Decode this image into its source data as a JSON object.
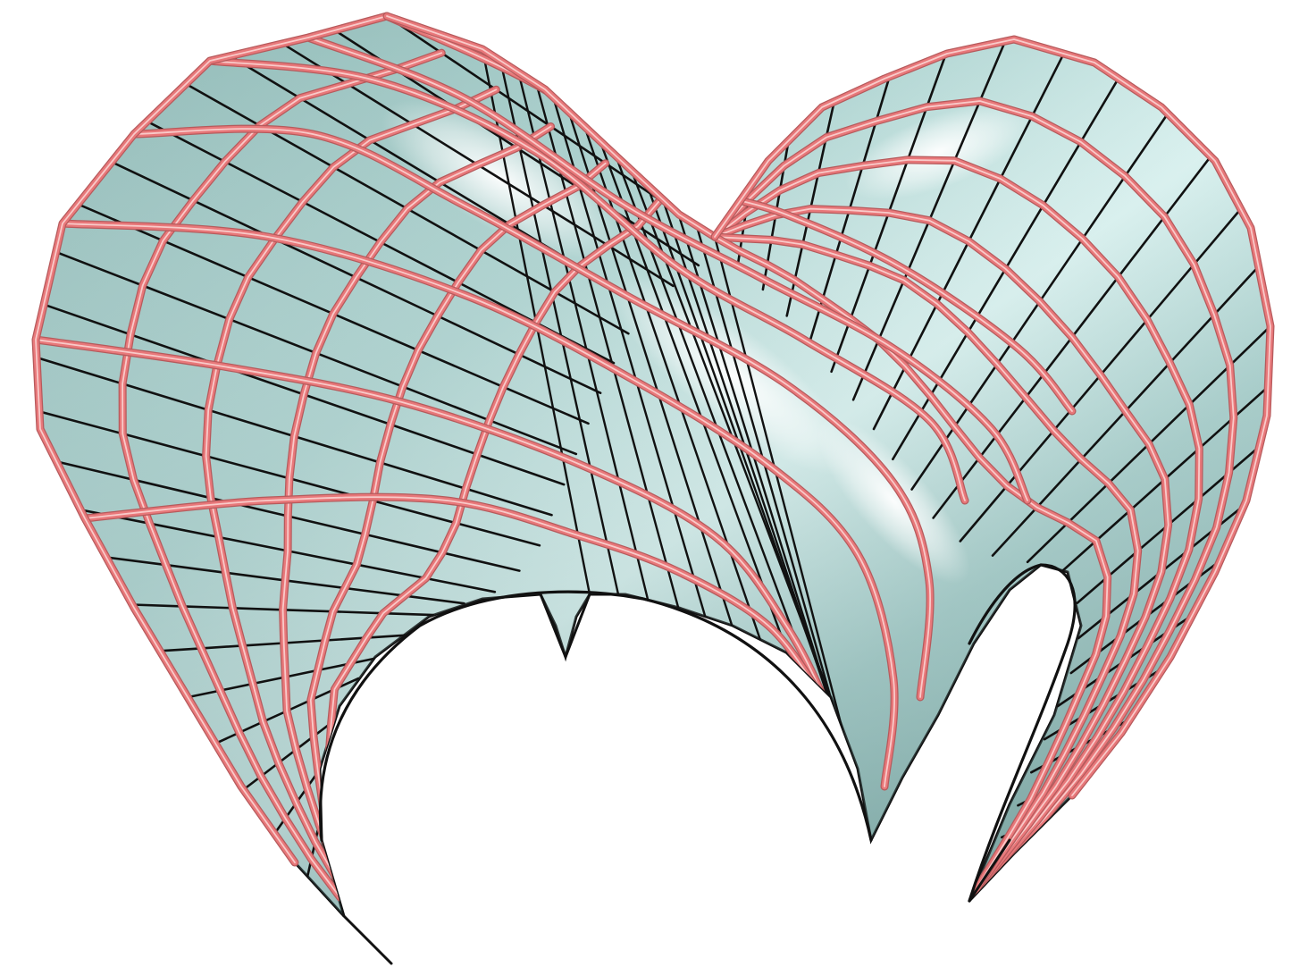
{
  "figure": {
    "background_color": "#ffffff",
    "surface_color": "#a9cfcc",
    "surface_highlight_color": "#eefcfb",
    "surface_shadow_color": "#6e9896",
    "mesh_line_color": "#111111",
    "tube_color": "#e8787a",
    "tube_highlight_color": "#fbd3d2"
  },
  "surface": {
    "description_icon": "shaded-freeform-surface"
  }
}
